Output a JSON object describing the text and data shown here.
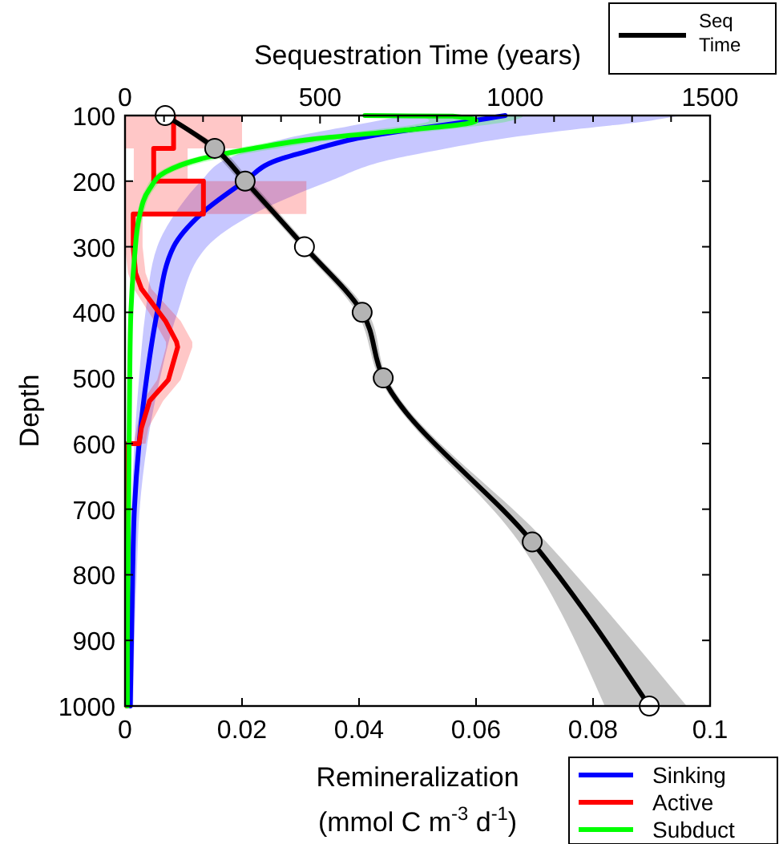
{
  "chart_data": {
    "type": "line",
    "orientation": "horizontal",
    "x2label": "Sequestration Time (years)",
    "xlabel": "Remineralization\n(mmol C m$^{-3}$ d$^{-1}$)",
    "ylabel": "Depth",
    "xlim": [
      0,
      0.1
    ],
    "xticks": [
      0,
      0.02,
      0.04,
      0.06,
      0.08,
      0.1
    ],
    "x2lim": [
      0,
      1500
    ],
    "x2ticks": [
      0,
      {
        "value": 100,
        "label": null
      },
      {
        "value": 200,
        "label": null
      },
      {
        "value": 300,
        "label": null
      },
      {
        "value": 400,
        "label": null
      },
      500,
      {
        "value": 600,
        "label": null
      },
      {
        "value": 700,
        "label": null
      },
      {
        "value": 800,
        "label": null
      },
      {
        "value": 900,
        "label": null
      },
      1000,
      {
        "value": 1100,
        "label": null
      },
      {
        "value": 1200,
        "label": null
      },
      {
        "value": 1300,
        "label": null
      },
      {
        "value": 1400,
        "label": null
      },
      1500
    ],
    "ylim": [
      1000,
      100
    ],
    "yticks": [
      100,
      200,
      300,
      400,
      500,
      600,
      700,
      800,
      900,
      1000
    ],
    "grid": false,
    "legend": "bottom right",
    "series": [
      {
        "name": "Sinking",
        "color": "#0000ff",
        "values": [
          0.065,
          0.058,
          0.05,
          0.039,
          0.033,
          0.026,
          0.0205,
          0.013,
          0.0083,
          0.0055,
          0.0037,
          0.0024,
          0.0016,
          0.0013,
          0.0011,
          0.0009
        ],
        "x": [
          100,
          110,
          120,
          136,
          150,
          168,
          200,
          250,
          300,
          400,
          500,
          600,
          700,
          800,
          900,
          1000
        ],
        "lower": [
          0.048,
          0.042,
          0.036,
          0.027,
          0.022,
          0.017,
          0.013,
          0.0085,
          0.0055,
          0.0035,
          0.0024,
          0.0016,
          0.0011,
          0.0008,
          0.0006,
          0.0005
        ],
        "upper": [
          0.095,
          0.088,
          0.078,
          0.064,
          0.055,
          0.045,
          0.035,
          0.022,
          0.014,
          0.009,
          0.006,
          0.0038,
          0.0025,
          0.002,
          0.0016,
          0.0014
        ]
      },
      {
        "name": "Active",
        "color": "#ff0000",
        "values": [
          0.0083,
          0.0083,
          0.0049,
          0.0049,
          0.0134,
          0.0134,
          0.0014,
          0.0014,
          0.0018,
          0.0028,
          0.0069,
          0.0088,
          0.009,
          0.0074,
          0.0042,
          0.0028,
          0.0024,
          0.0004,
          0.0003
        ],
        "x": [
          100,
          150,
          150,
          200,
          200,
          250,
          250,
          300,
          340,
          364,
          413,
          445,
          453,
          503,
          535,
          576,
          600,
          600,
          1000
        ],
        "lower": [
          0,
          0,
          0.0015,
          0.0015,
          0,
          0,
          0,
          0,
          0.0005,
          0.0015,
          0.005,
          0.007,
          0.007,
          0.0055,
          0.003,
          0.002,
          0.0015,
          0,
          0
        ],
        "upper": [
          0.02,
          0.02,
          0.0107,
          0.0107,
          0.031,
          0.031,
          0.003,
          0.003,
          0.0035,
          0.0045,
          0.0095,
          0.0115,
          0.0115,
          0.0095,
          0.0065,
          0.004,
          0.0035,
          0.0008,
          0.0006
        ]
      },
      {
        "name": "Subduct",
        "color": "#00ff00",
        "values": [
          0.041,
          0.056,
          0.06,
          0.046,
          0.032,
          0.022,
          0.013,
          0.0069,
          0.0042,
          0.0024,
          0.0016,
          0.001,
          0.0008,
          0.0007,
          0.0006,
          0.0005,
          0.0004,
          0.0004
        ],
        "x": [
          100,
          101,
          108,
          124,
          136,
          150,
          166,
          186,
          212,
          256,
          318,
          400,
          500,
          600,
          700,
          800,
          900,
          1000
        ],
        "lower": [
          0.041,
          0.05,
          0.052,
          0.04,
          0.028,
          0.019,
          0.011,
          0.0058,
          0.0035,
          0.002,
          0.0013,
          0.0008,
          0.0006,
          0.0005,
          0.0004,
          0.0003,
          0.0003,
          0.0003
        ],
        "upper": [
          0.05,
          0.068,
          0.066,
          0.052,
          0.037,
          0.026,
          0.016,
          0.0082,
          0.005,
          0.003,
          0.002,
          0.0013,
          0.001,
          0.0009,
          0.0008,
          0.0007,
          0.0006,
          0.0006
        ]
      },
      {
        "name": "Seq\nTime",
        "color": "#000000",
        "axis": "x2",
        "marker": "circle",
        "colors": [
          "#ffffff",
          "#b4b4b4",
          "#b4b4b4",
          "#ffffff",
          "#b4b4b4",
          "#b4b4b4",
          "#b4b4b4",
          "#ffffff"
        ],
        "values": [
          103,
          230,
          308,
          460,
          608,
          662,
          1044,
          1344
        ],
        "x": [
          100,
          150,
          200,
          300,
          400,
          500,
          750,
          1000
        ],
        "lower": [
          95,
          215,
          295,
          448,
          594,
          652,
          1010,
          1230
        ],
        "upper": [
          110,
          245,
          322,
          472,
          622,
          672,
          1080,
          1440
        ]
      }
    ]
  }
}
